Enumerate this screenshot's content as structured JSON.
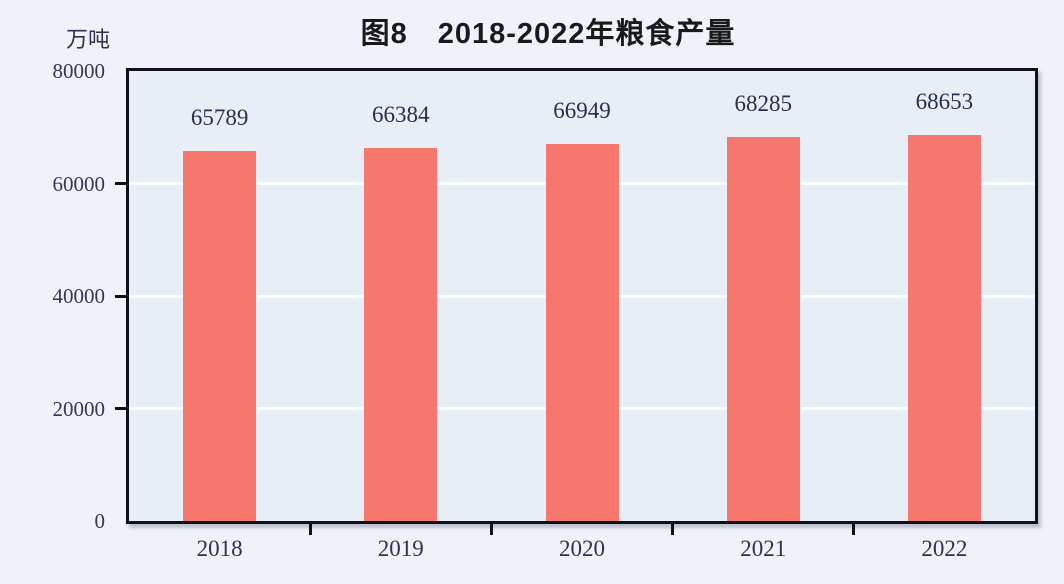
{
  "chart_data": {
    "type": "bar",
    "title": "图8　2018-2022年粮食产量",
    "unit_label": "万吨",
    "categories": [
      "2018",
      "2019",
      "2020",
      "2021",
      "2022"
    ],
    "values": [
      65789,
      66384,
      66949,
      68285,
      68653
    ],
    "value_labels": [
      "65789",
      "66384",
      "66949",
      "68285",
      "68653"
    ],
    "xlabel": "",
    "ylabel": "万吨",
    "ylim": [
      0,
      80000
    ],
    "yticks": [
      0,
      20000,
      40000,
      60000,
      80000
    ],
    "ytick_labels": [
      "0",
      "20000",
      "40000",
      "60000",
      "80000"
    ],
    "grid": "horizontal",
    "legend_position": "none"
  },
  "colors": {
    "page_background": "#eff3f9",
    "plot_background": "#e8eef6",
    "bar": "#f5776e",
    "gridline": "#fafcfe",
    "axis_border": "#10101a",
    "title": "#1a1a1a",
    "unit_label": "#30304f",
    "ytick_label": "#34345c",
    "xtick_label": "#2e3152",
    "value_label": "#2a2d4b"
  }
}
